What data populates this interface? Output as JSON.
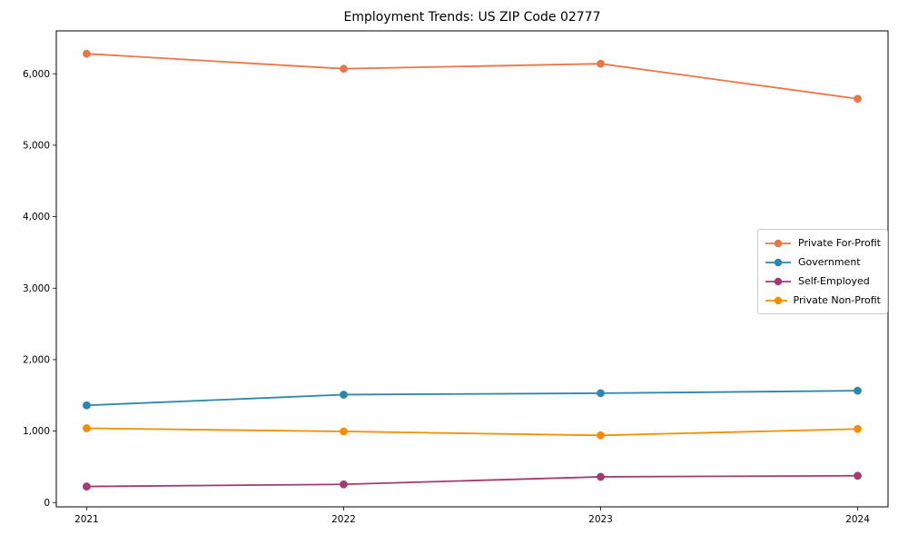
{
  "figure": {
    "title": "Employment Trends: US ZIP Code 02777"
  },
  "chart_data": {
    "type": "line",
    "title": "Employment Trends: US ZIP Code 02777",
    "xlabel": "",
    "ylabel": "",
    "categories": [
      "2021",
      "2022",
      "2023",
      "2024"
    ],
    "series": [
      {
        "name": "Private For-Profit",
        "color": "#E8764B",
        "values": [
          6280,
          6070,
          6140,
          5650
        ]
      },
      {
        "name": "Government",
        "color": "#2E86AB",
        "values": [
          1360,
          1510,
          1530,
          1565
        ]
      },
      {
        "name": "Self-Employed",
        "color": "#A23B72",
        "values": [
          225,
          255,
          360,
          375
        ]
      },
      {
        "name": "Private Non-Profit",
        "color": "#F18F01",
        "values": [
          1040,
          995,
          940,
          1030
        ]
      }
    ],
    "yticks": [
      0,
      1000,
      2000,
      3000,
      4000,
      5000,
      6000
    ],
    "ytick_labels": [
      "0",
      "1,000",
      "2,000",
      "3,000",
      "4,000",
      "5,000",
      "6,000"
    ],
    "ylim": [
      -60,
      6600
    ],
    "grid": false,
    "marker": "circle",
    "legend_position": "center-right",
    "axis_color": "#000000",
    "background": "#ffffff"
  }
}
